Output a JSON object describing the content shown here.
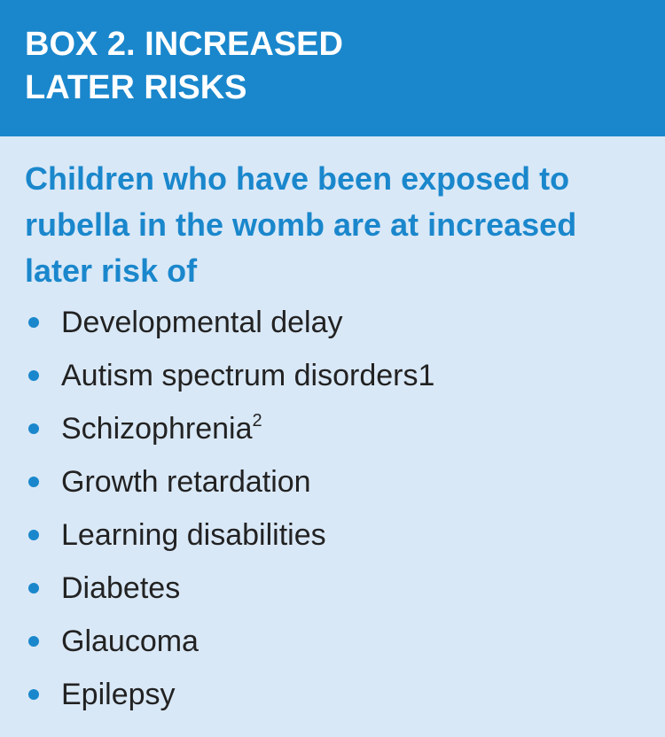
{
  "header": {
    "title": "BOX 2. INCREASED LATER RISKS"
  },
  "intro": "Children who have been exposed to rubella in the womb are at increased later risk of",
  "risks": [
    {
      "label": "Developmental delay",
      "sup": ""
    },
    {
      "label": "Autism spectrum disorders1",
      "sup": ""
    },
    {
      "label": "Schizophrenia",
      "sup": "2"
    },
    {
      "label": "Growth retardation",
      "sup": ""
    },
    {
      "label": "Learning disabilities",
      "sup": ""
    },
    {
      "label": "Diabetes",
      "sup": ""
    },
    {
      "label": "Glaucoma",
      "sup": ""
    },
    {
      "label": "Epilepsy",
      "sup": ""
    }
  ],
  "colors": {
    "header_background": "#1a87cc",
    "body_background": "#d9e8f7",
    "accent": "#1a87cc",
    "text": "#222222"
  }
}
